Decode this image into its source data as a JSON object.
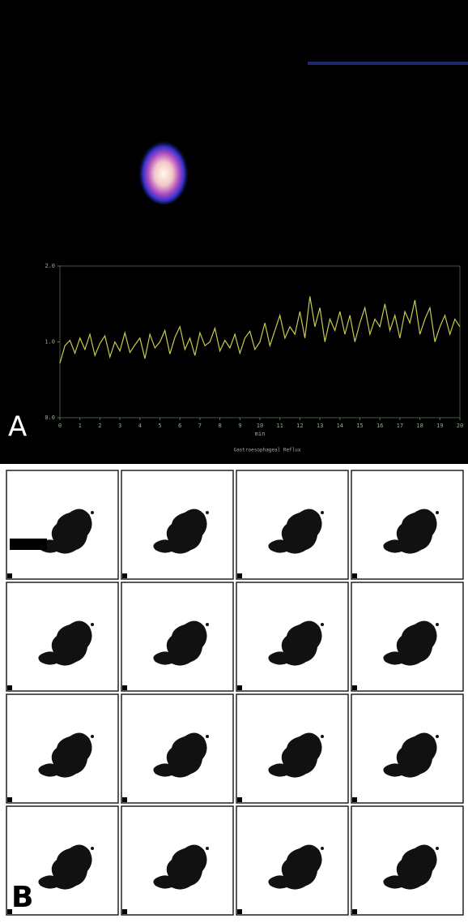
{
  "panel_a_label": "A",
  "panel_b_label": "B",
  "panel_b_title": "Gastroesophageal Reflux",
  "chart_data": {
    "type": "line",
    "xlabel": "min",
    "x": [
      0,
      0.25,
      0.5,
      0.75,
      1,
      1.25,
      1.5,
      1.75,
      2,
      2.25,
      2.5,
      2.75,
      3,
      3.25,
      3.5,
      3.75,
      4,
      4.25,
      4.5,
      4.75,
      5,
      5.25,
      5.5,
      5.75,
      6,
      6.25,
      6.5,
      6.75,
      7,
      7.25,
      7.5,
      7.75,
      8,
      8.25,
      8.5,
      8.75,
      9,
      9.25,
      9.5,
      9.75,
      10,
      10.25,
      10.5,
      10.75,
      11,
      11.25,
      11.5,
      11.75,
      12,
      12.25,
      12.5,
      12.75,
      13,
      13.25,
      13.5,
      13.75,
      14,
      14.25,
      14.5,
      14.75,
      15,
      15.25,
      15.5,
      15.75,
      16,
      16.25,
      16.5,
      16.75,
      17,
      17.25,
      17.5,
      17.75,
      18,
      18.25,
      18.5,
      18.75,
      19,
      19.25,
      19.5,
      19.75,
      20
    ],
    "series": [
      {
        "color": "#c9c94e",
        "values": [
          0.72,
          0.95,
          1.02,
          0.85,
          1.05,
          0.9,
          1.1,
          0.82,
          0.98,
          1.08,
          0.8,
          1.0,
          0.88,
          1.12,
          0.86,
          0.96,
          1.05,
          0.78,
          1.1,
          0.92,
          1.0,
          1.15,
          0.84,
          1.06,
          1.2,
          0.9,
          1.05,
          0.82,
          1.12,
          0.95,
          1.0,
          1.18,
          0.88,
          1.02,
          0.92,
          1.1,
          0.85,
          1.05,
          1.14,
          0.9,
          1.0,
          1.25,
          0.95,
          1.15,
          1.35,
          1.05,
          1.2,
          1.1,
          1.4,
          1.05,
          1.6,
          1.2,
          1.45,
          1.0,
          1.3,
          1.15,
          1.4,
          1.1,
          1.35,
          1.0,
          1.25,
          1.45,
          1.1,
          1.3,
          1.2,
          1.5,
          1.15,
          1.35,
          1.05,
          1.4,
          1.25,
          1.55,
          1.1,
          1.3,
          1.45,
          1.0,
          1.2,
          1.35,
          1.1,
          1.3,
          1.2
        ]
      }
    ],
    "xlim": [
      0,
      20
    ],
    "ylim": [
      0,
      2
    ],
    "xticks": [
      0,
      1,
      2,
      3,
      4,
      5,
      6,
      7,
      8,
      9,
      10,
      11,
      12,
      13,
      14,
      15,
      16,
      17,
      18,
      19,
      20
    ],
    "yticks": [
      {
        "value": 0,
        "label": "0.0"
      },
      {
        "value": 1,
        "label": "1.0"
      },
      {
        "value": 2,
        "label": "2.0"
      }
    ]
  }
}
